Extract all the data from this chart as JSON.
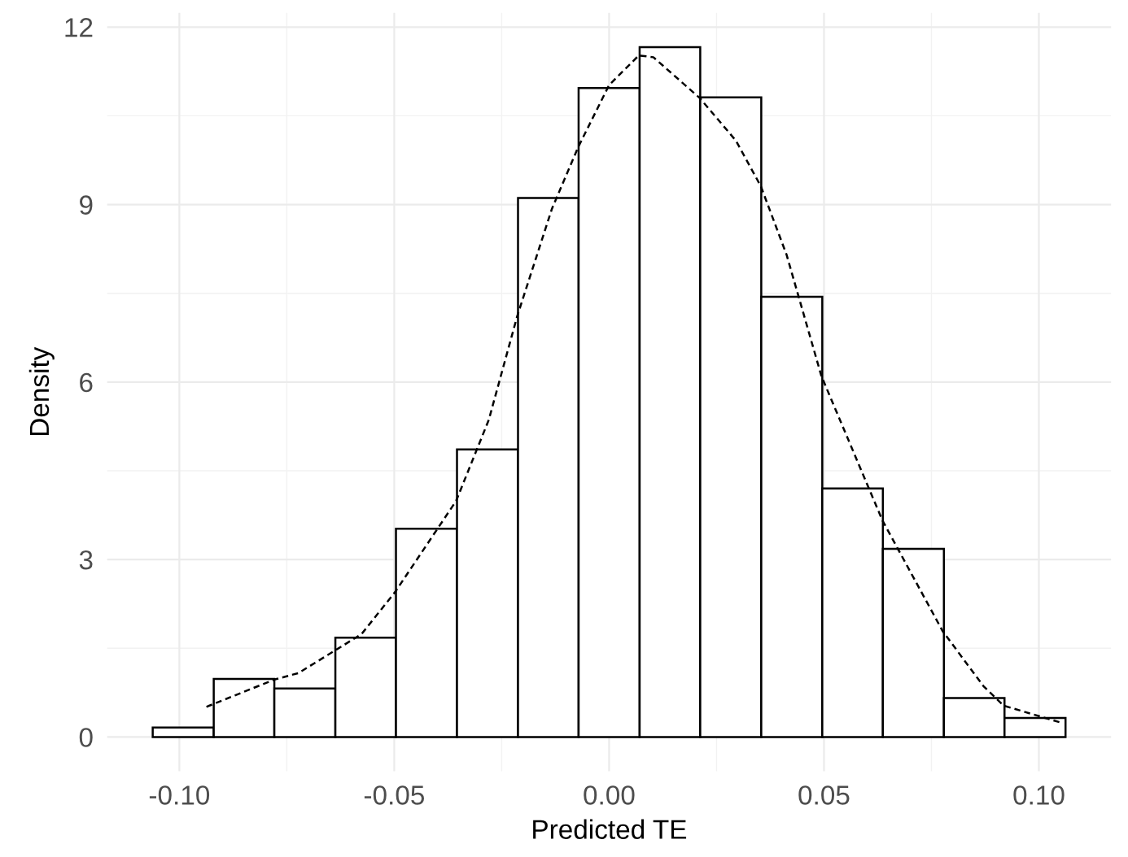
{
  "chart_data": {
    "type": "histogram",
    "xlabel": "Predicted TE",
    "ylabel": "Density",
    "bins": [
      -0.1062,
      -0.092,
      -0.0779,
      -0.0637,
      -0.0496,
      -0.0354,
      -0.0212,
      -0.0071,
      0.0071,
      0.0212,
      0.0354,
      0.0496,
      0.0637,
      0.0779,
      0.092,
      0.1062
    ],
    "values": [
      0.16,
      0.98,
      0.82,
      1.68,
      3.52,
      4.86,
      9.11,
      10.97,
      11.66,
      10.81,
      7.44,
      4.2,
      3.18,
      0.66,
      0.32
    ],
    "color": "#ffffff",
    "series": [
      {
        "type": "line",
        "color": "#000000",
        "line_style": "dashed",
        "x": [
          -0.0937,
          -0.0779,
          -0.0723,
          -0.0576,
          -0.0498,
          -0.0356,
          -0.028,
          -0.0214,
          -0.0133,
          -0.0072,
          0.0,
          0.0069,
          0.0103,
          0.0211,
          0.0295,
          0.0353,
          0.0413,
          0.0494,
          0.0636,
          0.0776,
          0.0871,
          0.0918,
          0.1048
        ],
        "values": [
          0.51,
          0.97,
          1.08,
          1.74,
          2.45,
          3.99,
          5.36,
          7.11,
          8.93,
          9.97,
          11.02,
          11.52,
          11.49,
          10.8,
          10.08,
          9.31,
          8.15,
          6.1,
          3.66,
          1.79,
          0.86,
          0.53,
          0.25
        ]
      }
    ],
    "xlim": [
      -0.1168,
      0.1168
    ],
    "ylim": [
      -0.58,
      12.24
    ],
    "xticks": [
      {
        "value": -0.1,
        "label": "-0.10"
      },
      {
        "value": -0.05,
        "label": "-0.05"
      },
      {
        "value": 0,
        "label": "0.00"
      },
      {
        "value": 0.05,
        "label": "0.05"
      },
      {
        "value": 0.1,
        "label": "0.10"
      }
    ],
    "yticks": [
      0,
      3,
      6,
      9,
      12
    ],
    "grid": true
  }
}
